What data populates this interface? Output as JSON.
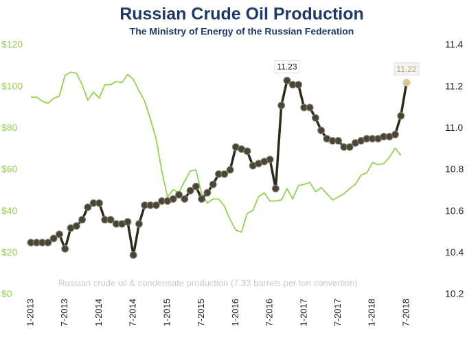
{
  "chart_data": {
    "type": "line",
    "title": "Russian Crude Oil Production",
    "subtitle": "The Ministry of Energy of the Russian Federation",
    "annotation": "Russian crude oil & condensate production (7.33 barrels per ton convertion)",
    "categories": [
      "1-2013",
      null,
      null,
      null,
      null,
      null,
      "7-2013",
      null,
      null,
      null,
      null,
      null,
      "1-2014",
      null,
      null,
      null,
      null,
      null,
      "7-2014",
      null,
      null,
      null,
      null,
      null,
      "1-2015",
      null,
      null,
      null,
      null,
      null,
      "7-2015",
      null,
      null,
      null,
      null,
      null,
      "1-2016",
      null,
      null,
      null,
      null,
      null,
      "7-2016",
      null,
      null,
      null,
      null,
      null,
      "1-2017",
      null,
      null,
      null,
      null,
      null,
      "7-2017",
      null,
      null,
      null,
      null,
      null,
      "1-2018",
      null,
      null,
      null,
      null,
      null,
      "7-2018"
    ],
    "series": [
      {
        "color": "#92d050",
        "axis": "y",
        "markers": false,
        "values": [
          95,
          95,
          93,
          92,
          94.5,
          95.5,
          105.5,
          107,
          106.5,
          101,
          93.5,
          97.5,
          94.5,
          101,
          101,
          102.5,
          102,
          106,
          103.5,
          98,
          93,
          84.5,
          75,
          59.5,
          47,
          50.5,
          49,
          54.5,
          59.5,
          60,
          48.5,
          44,
          46,
          46,
          42.5,
          36,
          31,
          30,
          39,
          40.5,
          47,
          49,
          45,
          45,
          45.5,
          51,
          46,
          52.5,
          53,
          54,
          49.5,
          51.5,
          48.5,
          45.5,
          47,
          48.5,
          51,
          53,
          57.5,
          58.5,
          63.5,
          62.5,
          63,
          66,
          70.5,
          67,
          null
        ]
      },
      {
        "color": "#2e2a1e",
        "axis": "y2",
        "markers": true,
        "marker_color": "#4a4535",
        "highlight_color": "#d6c99c",
        "labeled_points": [
          45,
          66
        ],
        "values": [
          10.45,
          10.45,
          10.45,
          10.45,
          10.47,
          10.49,
          10.42,
          10.52,
          10.53,
          10.56,
          10.62,
          10.64,
          10.64,
          10.56,
          10.56,
          10.54,
          10.54,
          10.55,
          10.39,
          10.54,
          10.63,
          10.63,
          10.63,
          10.65,
          10.65,
          10.66,
          10.68,
          10.66,
          10.7,
          10.72,
          10.66,
          10.69,
          10.73,
          10.78,
          10.78,
          10.8,
          10.91,
          10.9,
          10.89,
          10.82,
          10.83,
          10.84,
          10.85,
          10.71,
          11.11,
          11.23,
          11.21,
          11.21,
          11.1,
          11.1,
          11.05,
          10.99,
          10.95,
          10.94,
          10.94,
          10.91,
          10.91,
          10.93,
          10.94,
          10.95,
          10.95,
          10.95,
          10.96,
          10.96,
          10.97,
          11.06,
          11.22
        ]
      }
    ],
    "ylim": [
      0,
      120
    ],
    "yticks": [
      {
        "value": 0,
        "label": "$0"
      },
      {
        "value": 20,
        "label": "$20"
      },
      {
        "value": 40,
        "label": "$40"
      },
      {
        "value": 60,
        "label": "$60"
      },
      {
        "value": 80,
        "label": "$80"
      },
      {
        "value": 100,
        "label": "$100"
      },
      {
        "value": 120,
        "label": "$120"
      }
    ],
    "y2lim": [
      10.2,
      11.4
    ],
    "y2ticks": [
      10.2,
      10.4,
      10.6,
      10.8,
      {
        "value": 11.0,
        "label": "11.0"
      },
      11.2,
      11.4
    ],
    "ytick_color": "#92d050",
    "grid": false
  }
}
